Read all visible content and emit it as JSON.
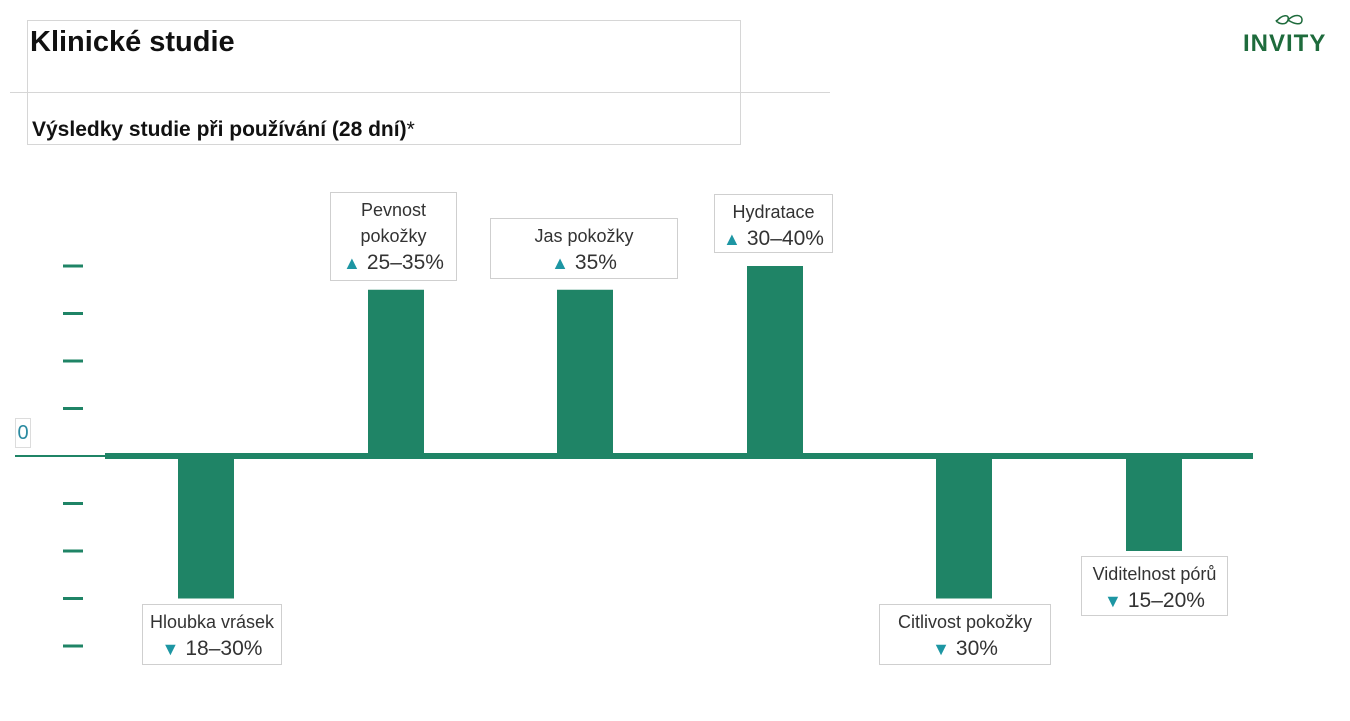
{
  "title": "Klinické studie",
  "subtitle_bold": "Výsledky studie při používání (28 dní)",
  "subtitle_mark": "*",
  "logo": {
    "text": "INVITY",
    "color": "#1e6b3c"
  },
  "chart_data": {
    "type": "bar",
    "zero_label": "0",
    "bar_color": "#1f8466",
    "marker_color": "#1d96a3",
    "categories": [
      "Hloubka vrásek",
      "Pevnost pokožky",
      "Jas pokožky",
      "Hydratace",
      "Citlivost pokožky",
      "Viditelnost pórů"
    ],
    "values": [
      -30,
      35,
      35,
      40,
      -30,
      -20
    ],
    "value_labels": [
      "18–30%",
      "25–35%",
      "35%",
      "30–40%",
      "30%",
      "15–20%"
    ],
    "directions": [
      "down",
      "up",
      "up",
      "up",
      "down",
      "down"
    ],
    "ylim": [
      -40,
      40
    ],
    "ticks": [
      -40,
      -30,
      -20,
      -10,
      10,
      20,
      30,
      40
    ]
  }
}
